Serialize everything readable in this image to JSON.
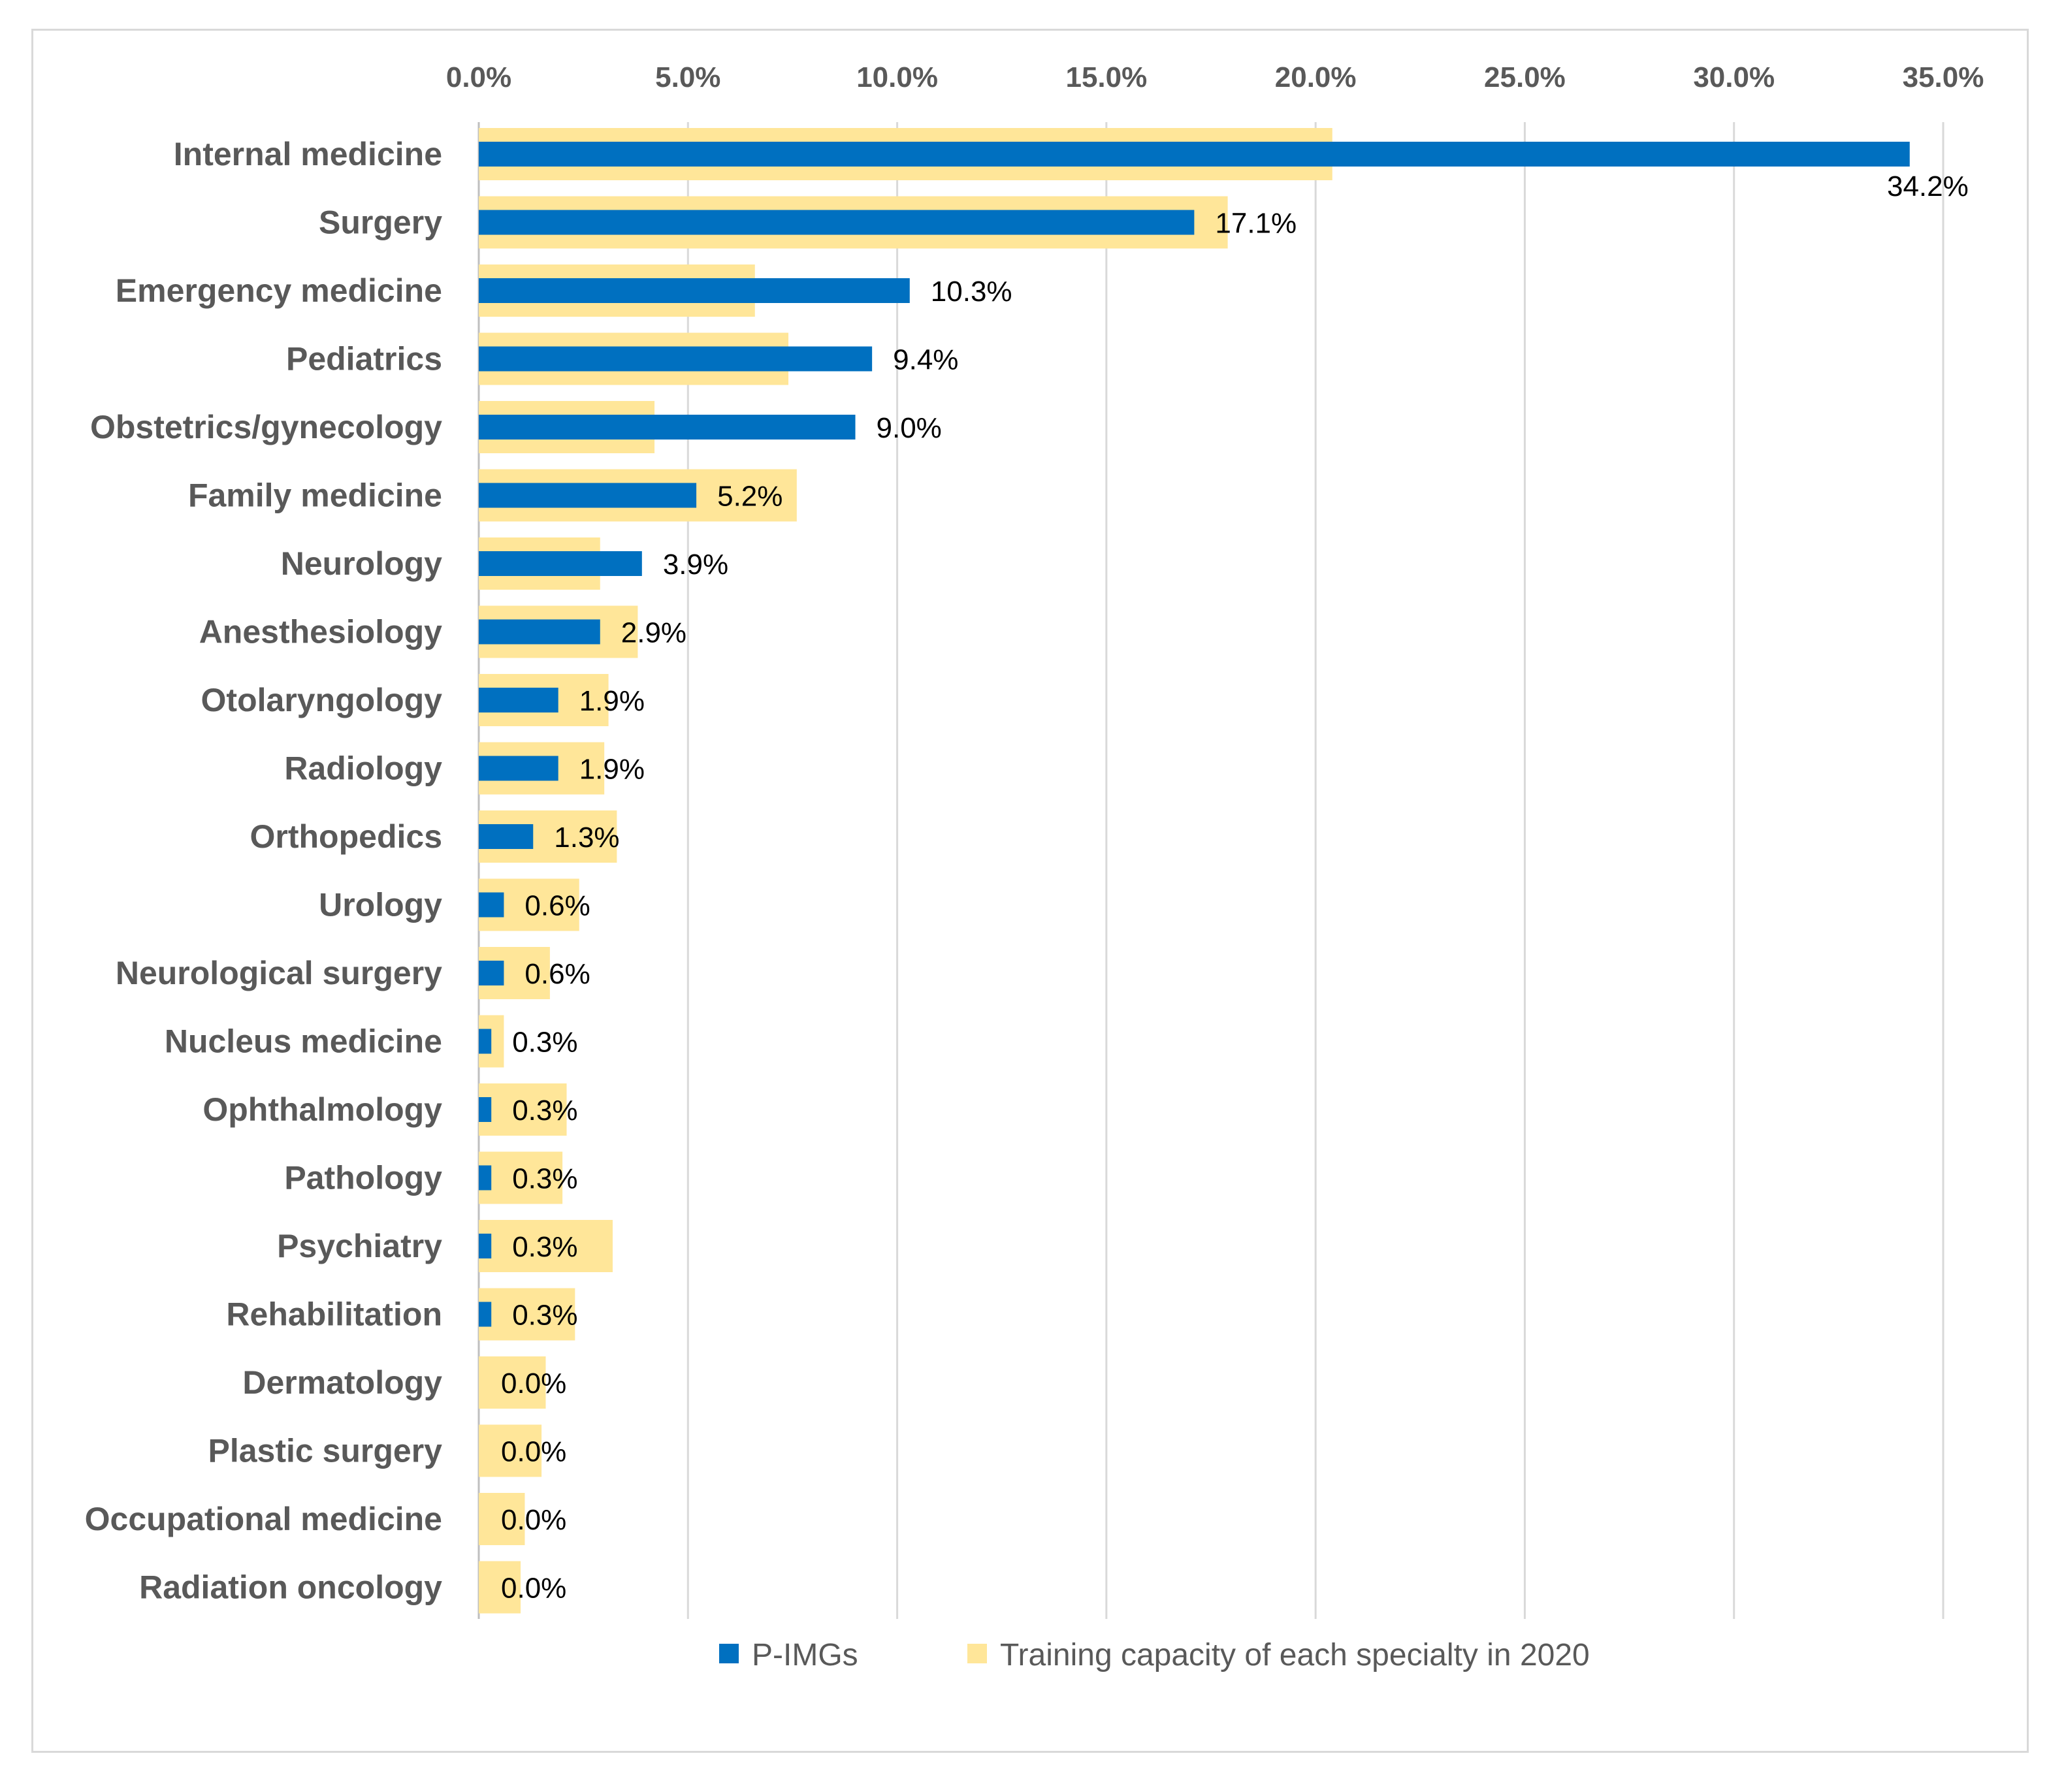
{
  "chart_data": {
    "type": "bar",
    "orientation": "horizontal",
    "title": "",
    "xlabel": "",
    "ylabel": "",
    "xlim": [
      0,
      35
    ],
    "x_ticks": [
      "0.0%",
      "5.0%",
      "10.0%",
      "15.0%",
      "20.0%",
      "25.0%",
      "30.0%",
      "35.0%"
    ],
    "x_axis_position": "top",
    "grid": "vertical",
    "legend_position": "bottom",
    "categories": [
      "Internal medicine",
      "Surgery",
      "Emergency medicine",
      "Pediatrics",
      "Obstetrics/gynecology",
      "Family medicine",
      "Neurology",
      "Anesthesiology",
      "Otolaryngology",
      "Radiology",
      "Orthopedics",
      "Urology",
      "Neurological surgery",
      "Nucleus medicine",
      "Ophthalmology",
      "Pathology",
      "Psychiatry",
      "Rehabilitation",
      "Dermatology",
      "Plastic surgery",
      "Occupational medicine",
      "Radiation oncology"
    ],
    "series": [
      {
        "name": "P-IMGs",
        "color": "#0070C0",
        "values": [
          34.2,
          17.1,
          10.3,
          9.4,
          9.0,
          5.2,
          3.9,
          2.9,
          1.9,
          1.9,
          1.3,
          0.6,
          0.6,
          0.3,
          0.3,
          0.3,
          0.3,
          0.3,
          0.0,
          0.0,
          0.0,
          0.0
        ],
        "labels": [
          "34.2%",
          "17.1%",
          "10.3%",
          "9.4%",
          "9.0%",
          "5.2%",
          "3.9%",
          "2.9%",
          "1.9%",
          "1.9%",
          "1.3%",
          "0.6%",
          "0.6%",
          "0.3%",
          "0.3%",
          "0.3%",
          "0.3%",
          "0.3%",
          "0.0%",
          "0.0%",
          "0.0%",
          "0.0%"
        ]
      },
      {
        "name": "Training capacity of each specialty in 2020",
        "color": "#FFE699",
        "values": [
          20.4,
          17.9,
          6.6,
          7.4,
          4.2,
          7.6,
          2.9,
          3.8,
          3.1,
          3.0,
          3.3,
          2.4,
          1.7,
          0.6,
          2.1,
          2.0,
          3.2,
          2.3,
          1.6,
          1.5,
          1.1,
          1.0
        ]
      }
    ]
  }
}
